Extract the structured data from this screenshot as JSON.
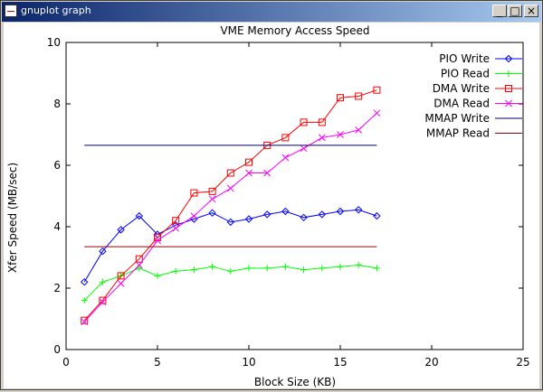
{
  "window": {
    "title": "gnuplot graph",
    "controls": {
      "minimize": "_",
      "maximize": "□",
      "close": "×"
    }
  },
  "colors": {
    "pio_write": "#0000ff",
    "pio_read": "#00ff00",
    "dma_write": "#ff0000",
    "dma_read": "#ff00ff",
    "mmap_write": "#000066",
    "mmap_read": "#990000"
  },
  "chart_data": {
    "type": "line",
    "title": "VME Memory Access Speed",
    "xlabel": "Block Size (KB)",
    "ylabel": "Xfer Speed (MB/sec)",
    "xlim": [
      0,
      25
    ],
    "ylim": [
      0,
      10
    ],
    "xticks": [
      0,
      5,
      10,
      15,
      20,
      25
    ],
    "yticks": [
      0,
      2,
      4,
      6,
      8,
      10
    ],
    "legend_position": "top-right",
    "series": [
      {
        "name": "PIO Write",
        "marker": "diamond",
        "color": "#0000ff",
        "x": [
          1,
          2,
          3,
          4,
          5,
          6,
          7,
          8,
          9,
          10,
          11,
          12,
          13,
          14,
          15,
          16,
          17
        ],
        "y": [
          2.2,
          3.2,
          3.9,
          4.35,
          3.75,
          4.05,
          4.25,
          4.45,
          4.15,
          4.25,
          4.4,
          4.5,
          4.3,
          4.4,
          4.5,
          4.55,
          4.35
        ]
      },
      {
        "name": "PIO Read",
        "marker": "plus",
        "color": "#00ff00",
        "x": [
          1,
          2,
          3,
          4,
          5,
          6,
          7,
          8,
          9,
          10,
          11,
          12,
          13,
          14,
          15,
          16,
          17
        ],
        "y": [
          1.6,
          2.2,
          2.4,
          2.65,
          2.4,
          2.55,
          2.6,
          2.7,
          2.55,
          2.65,
          2.65,
          2.7,
          2.6,
          2.65,
          2.7,
          2.75,
          2.65
        ]
      },
      {
        "name": "DMA Write",
        "marker": "square",
        "color": "#ff0000",
        "x": [
          1,
          2,
          3,
          4,
          5,
          6,
          7,
          8,
          9,
          10,
          11,
          12,
          13,
          14,
          15,
          16,
          17
        ],
        "y": [
          0.95,
          1.6,
          2.4,
          2.95,
          3.65,
          4.2,
          5.1,
          5.15,
          5.75,
          6.1,
          6.65,
          6.9,
          7.4,
          7.4,
          8.2,
          8.25,
          8.45
        ]
      },
      {
        "name": "DMA Read",
        "marker": "cross",
        "color": "#ff00ff",
        "x": [
          1,
          2,
          3,
          4,
          5,
          6,
          7,
          8,
          9,
          10,
          11,
          12,
          13,
          14,
          15,
          16,
          17
        ],
        "y": [
          0.9,
          1.55,
          2.15,
          2.75,
          3.55,
          3.95,
          4.35,
          4.9,
          5.25,
          5.75,
          5.75,
          6.25,
          6.55,
          6.9,
          7.0,
          7.15,
          7.7
        ]
      },
      {
        "name": "MMAP Write",
        "marker": "none",
        "color": "#000066",
        "x": [
          1,
          17
        ],
        "y": [
          6.65,
          6.65
        ]
      },
      {
        "name": "MMAP Read",
        "marker": "none",
        "color": "#990000",
        "x": [
          1,
          17
        ],
        "y": [
          3.35,
          3.35
        ]
      }
    ]
  }
}
